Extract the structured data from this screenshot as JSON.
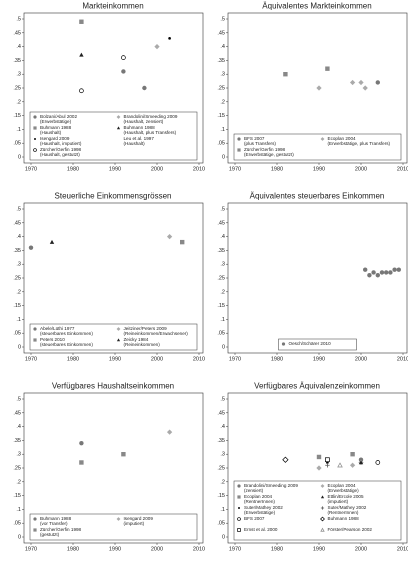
{
  "chart_data": [
    {
      "type": "scatter",
      "title": "Markteinkommen",
      "xlim": [
        1970,
        2010
      ],
      "xticks": [
        1970,
        1980,
        1990,
        2000,
        2010
      ],
      "ylim": [
        0,
        0.5
      ],
      "yticks": [
        0,
        {
          "value": 0.05,
          "label": ".05"
        },
        {
          "value": 0.1,
          "label": ".1"
        },
        {
          "value": 0.15,
          "label": ".15"
        },
        {
          "value": 0.2,
          "label": ".2"
        },
        {
          "value": 0.25,
          "label": ".25"
        },
        {
          "value": 0.3,
          "label": ".3"
        },
        {
          "value": 0.35,
          "label": ".35"
        },
        {
          "value": 0.4,
          "label": ".4"
        },
        {
          "value": 0.45,
          "label": ".45"
        },
        {
          "value": 0.5,
          "label": ".5"
        }
      ],
      "series": [
        {
          "name": [
            "Bolzani/Abul 2002",
            "(Erwerbstätige)"
          ],
          "marker": "circle",
          "color": "#777777",
          "x": [
            1992,
            1997
          ],
          "values": [
            0.31,
            0.25
          ]
        },
        {
          "name": [
            "Brandolini/Smeeding 2009",
            "(Haushalt, zensiert)"
          ],
          "marker": "diamond",
          "color": "#aaaaaa",
          "x": [
            2000
          ],
          "values": [
            0.4
          ]
        },
        {
          "name": [
            "Buhmann 1988",
            "(Haushalt)"
          ],
          "marker": "square",
          "color": "#888888",
          "x": [
            1982
          ],
          "values": [
            0.49
          ]
        },
        {
          "name": [
            "Buhmann 1988",
            "(Haushalt, plus Transfers)"
          ],
          "marker": "triangle",
          "color": "#222222",
          "x": [
            1982
          ],
          "values": [
            0.37
          ]
        },
        {
          "name": [
            "Isengard 2009",
            "(Haushalt, imputiert)"
          ],
          "marker": "dot",
          "color": "#000000",
          "x": [
            2003
          ],
          "values": [
            0.43
          ]
        },
        {
          "name": [
            "Leu et al. 1997",
            "(Haushalt)"
          ],
          "marker": "none",
          "color": "#000000",
          "x": [],
          "values": []
        },
        {
          "name": [
            "Zürcher/Gerfin 1998",
            "(Haushalt, gestutzt)"
          ],
          "marker": "circle-open",
          "color": "#000000",
          "x": [
            1982,
            1992
          ],
          "values": [
            0.24,
            0.36
          ]
        }
      ]
    },
    {
      "type": "scatter",
      "title": "Äquivalentes Markteinkommen",
      "xlim": [
        1970,
        2010
      ],
      "xticks": [
        1970,
        1980,
        1990,
        2000,
        2010
      ],
      "ylim": [
        0,
        0.5
      ],
      "yticks": [
        0,
        {
          "value": 0.05,
          "label": ".05"
        },
        {
          "value": 0.1,
          "label": ".1"
        },
        {
          "value": 0.15,
          "label": ".15"
        },
        {
          "value": 0.2,
          "label": ".2"
        },
        {
          "value": 0.25,
          "label": ".25"
        },
        {
          "value": 0.3,
          "label": ".3"
        },
        {
          "value": 0.35,
          "label": ".35"
        },
        {
          "value": 0.4,
          "label": ".4"
        },
        {
          "value": 0.45,
          "label": ".45"
        },
        {
          "value": 0.5,
          "label": ".5"
        }
      ],
      "series": [
        {
          "name": [
            "BFS 2007",
            "(plus Transfers)"
          ],
          "marker": "circle",
          "color": "#777777",
          "x": [
            2004
          ],
          "values": [
            0.27
          ]
        },
        {
          "name": [
            "Ecoplan 2004",
            "(Erwerbstätige, plus Transfers)"
          ],
          "marker": "diamond",
          "color": "#aaaaaa",
          "x": [
            1990,
            1998,
            2000,
            2001
          ],
          "values": [
            0.25,
            0.27,
            0.27,
            0.25
          ]
        },
        {
          "name": [
            "Zürcher/Gerfin 1998",
            "(Erwerbstätige, gestutzt)"
          ],
          "marker": "square",
          "color": "#888888",
          "x": [
            1982,
            1992
          ],
          "values": [
            0.3,
            0.32
          ]
        }
      ]
    },
    {
      "type": "scatter",
      "title": "Steuerliche Einkommensgrössen",
      "xlim": [
        1970,
        2010
      ],
      "xticks": [
        1970,
        1980,
        1990,
        2000,
        2010
      ],
      "ylim": [
        0,
        0.5
      ],
      "yticks": [
        0,
        {
          "value": 0.05,
          "label": ".05"
        },
        {
          "value": 0.1,
          "label": ".1"
        },
        {
          "value": 0.15,
          "label": ".15"
        },
        {
          "value": 0.2,
          "label": ".2"
        },
        {
          "value": 0.25,
          "label": ".25"
        },
        {
          "value": 0.3,
          "label": ".3"
        },
        {
          "value": 0.35,
          "label": ".35"
        },
        {
          "value": 0.4,
          "label": ".4"
        },
        {
          "value": 0.45,
          "label": ".45"
        },
        {
          "value": 0.5,
          "label": ".5"
        }
      ],
      "series": [
        {
          "name": [
            "Abele/Lüthi 1977",
            "(steuerbares Einkommen)"
          ],
          "marker": "circle",
          "color": "#777777",
          "x": [
            1970
          ],
          "values": [
            0.36
          ]
        },
        {
          "name": [
            "Jeitziner/Peters 2009",
            "(Reineinkommen/Erwachsener)"
          ],
          "marker": "diamond",
          "color": "#aaaaaa",
          "x": [
            2003
          ],
          "values": [
            0.4
          ]
        },
        {
          "name": [
            "Peters 2010",
            "(steuerbares Einkommen)"
          ],
          "marker": "square",
          "color": "#888888",
          "x": [
            2006
          ],
          "values": [
            0.38
          ]
        },
        {
          "name": [
            "Zeicky 1984",
            "(Reineinkommen)"
          ],
          "marker": "triangle",
          "color": "#222222",
          "x": [
            1975
          ],
          "values": [
            0.38
          ]
        }
      ]
    },
    {
      "type": "scatter",
      "title": "Äquivalentes steuerbares Einkommen",
      "xlim": [
        1970,
        2010
      ],
      "xticks": [
        1970,
        1980,
        1990,
        2000,
        2010
      ],
      "ylim": [
        0,
        0.5
      ],
      "yticks": [
        0,
        {
          "value": 0.05,
          "label": ".05"
        },
        {
          "value": 0.1,
          "label": ".1"
        },
        {
          "value": 0.15,
          "label": ".15"
        },
        {
          "value": 0.2,
          "label": ".2"
        },
        {
          "value": 0.25,
          "label": ".25"
        },
        {
          "value": 0.3,
          "label": ".3"
        },
        {
          "value": 0.35,
          "label": ".35"
        },
        {
          "value": 0.4,
          "label": ".4"
        },
        {
          "value": 0.45,
          "label": ".45"
        },
        {
          "value": 0.5,
          "label": ".5"
        }
      ],
      "series": [
        {
          "name": [
            "Oesch/Schärer 2010"
          ],
          "marker": "circle",
          "color": "#777777",
          "x": [
            2001,
            2002,
            2003,
            2004,
            2005,
            2006,
            2007,
            2008,
            2009
          ],
          "values": [
            0.28,
            0.26,
            0.27,
            0.26,
            0.27,
            0.27,
            0.27,
            0.28,
            0.28
          ]
        }
      ]
    },
    {
      "type": "scatter",
      "title": "Verfügbares Haushaltseinkommen",
      "xlim": [
        1970,
        2010
      ],
      "xticks": [
        1970,
        1980,
        1990,
        2000,
        2010
      ],
      "ylim": [
        0,
        0.5
      ],
      "yticks": [
        0,
        {
          "value": 0.05,
          "label": ".05"
        },
        {
          "value": 0.1,
          "label": ".1"
        },
        {
          "value": 0.15,
          "label": ".15"
        },
        {
          "value": 0.2,
          "label": ".2"
        },
        {
          "value": 0.25,
          "label": ".25"
        },
        {
          "value": 0.3,
          "label": ".3"
        },
        {
          "value": 0.35,
          "label": ".35"
        },
        {
          "value": 0.4,
          "label": ".4"
        },
        {
          "value": 0.45,
          "label": ".45"
        },
        {
          "value": 0.5,
          "label": ".5"
        }
      ],
      "series": [
        {
          "name": [
            "Buhmann 1988",
            "(vor Transfer)"
          ],
          "marker": "circle",
          "color": "#777777",
          "x": [
            1982
          ],
          "values": [
            0.34
          ]
        },
        {
          "name": [
            "Isengard 2009",
            "(imputiert)"
          ],
          "marker": "diamond",
          "color": "#aaaaaa",
          "x": [
            2003
          ],
          "values": [
            0.38
          ]
        },
        {
          "name": [
            "Zürcher/Gerfin 1998",
            "(gestutzt)"
          ],
          "marker": "square",
          "color": "#888888",
          "x": [
            1982,
            1992
          ],
          "values": [
            0.27,
            0.3
          ]
        }
      ]
    },
    {
      "type": "scatter",
      "title": "Verfügbares Äquivalenzeinkommen",
      "xlim": [
        1970,
        2010
      ],
      "xticks": [
        1970,
        1980,
        1990,
        2000,
        2010
      ],
      "ylim": [
        0,
        0.5
      ],
      "yticks": [
        0,
        {
          "value": 0.05,
          "label": ".05"
        },
        {
          "value": 0.1,
          "label": ".1"
        },
        {
          "value": 0.15,
          "label": ".15"
        },
        {
          "value": 0.2,
          "label": ".2"
        },
        {
          "value": 0.25,
          "label": ".25"
        },
        {
          "value": 0.3,
          "label": ".3"
        },
        {
          "value": 0.35,
          "label": ".35"
        },
        {
          "value": 0.4,
          "label": ".4"
        },
        {
          "value": 0.45,
          "label": ".45"
        },
        {
          "value": 0.5,
          "label": ".5"
        }
      ],
      "series": [
        {
          "name": [
            "Brandolini/Smeeding 2009",
            "(zensiert)"
          ],
          "marker": "circle",
          "color": "#777777",
          "x": [
            2000
          ],
          "values": [
            0.28
          ]
        },
        {
          "name": [
            "Ecoplan 2004",
            "(Erwerbstätige)"
          ],
          "marker": "diamond",
          "color": "#aaaaaa",
          "x": [
            1990,
            1998,
            2000
          ],
          "values": [
            0.25,
            0.26,
            0.27
          ]
        },
        {
          "name": [
            "Ecoplan 2004",
            "(RentnerInnen)"
          ],
          "marker": "square",
          "color": "#888888",
          "x": [
            1990,
            1998
          ],
          "values": [
            0.29,
            0.3
          ]
        },
        {
          "name": [
            "Ettlin/Ercole 2005",
            "(imputiert)"
          ],
          "marker": "triangle",
          "color": "#222222",
          "x": [
            2000
          ],
          "values": [
            0.27
          ]
        },
        {
          "name": [
            "Suter/Mathey 2002",
            "(Erwerbstätige)"
          ],
          "marker": "dot",
          "color": "#000000",
          "x": [
            1992
          ],
          "values": [
            0.27
          ]
        },
        {
          "name": [
            "Suter/Mathey 2002",
            "(RentnerInnen)"
          ],
          "marker": "plus",
          "color": "#555555",
          "x": [
            1992
          ],
          "values": [
            0.26
          ]
        },
        {
          "name": [
            "BFS 2007"
          ],
          "marker": "circle-open",
          "color": "#000000",
          "x": [
            2004
          ],
          "values": [
            0.27
          ]
        },
        {
          "name": [
            "Buhmann 1988"
          ],
          "marker": "diamond-open",
          "color": "#000000",
          "x": [
            1982
          ],
          "values": [
            0.28
          ]
        },
        {
          "name": [
            "Ernst et al. 2000"
          ],
          "marker": "square-open",
          "color": "#000000",
          "x": [
            1992
          ],
          "values": [
            0.28
          ]
        },
        {
          "name": [
            "Förster/Pearson 2002"
          ],
          "marker": "triangle-open",
          "color": "#888888",
          "x": [
            1995
          ],
          "values": [
            0.26
          ]
        }
      ]
    }
  ]
}
